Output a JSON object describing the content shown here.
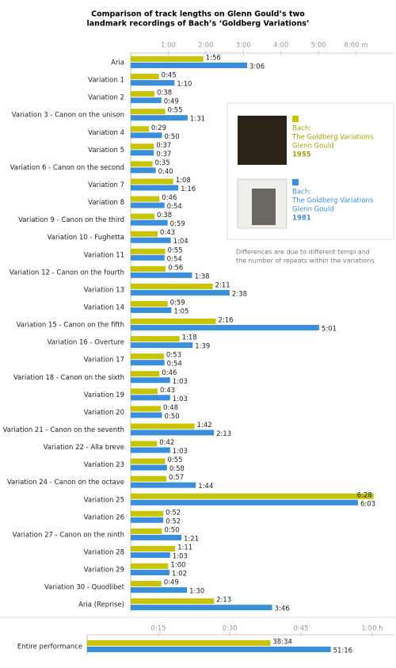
{
  "chart_data": [
    {
      "type": "bar",
      "orientation": "horizontal",
      "title": [
        "Comparison of track lengths on Glenn Gould’s two",
        "landmark recordings of Bach’s ‘Goldberg Variations’"
      ],
      "note": [
        "Differences are due to different tempi and",
        "the number of repeats within the variations."
      ],
      "categories": [
        "Aria",
        "Variation 1",
        "Variation 2",
        "Variation 3 - Canon on the unison",
        "Variation 4",
        "Variation 5",
        "Variation 6 - Canon on the second",
        "Variation 7",
        "Variation 8",
        "Variation 9 - Canon on the third",
        "Variation 10 - Fughetta",
        "Variation 11",
        "Variation 12 - Canon on the fourth",
        "Variation 13",
        "Variation 14",
        "Variation 15 - Canon on the fifth",
        "Variation 16 - Overture",
        "Variation 17",
        "Variation 18 - Canon on the sixth",
        "Variation 19",
        "Variation 20",
        "Variation 21 - Canon on the seventh",
        "Variation 22 - Alla breve",
        "Variation 23",
        "Variation 24 - Canon on the octave",
        "Variation 25",
        "Variation 26",
        "Variation 27 - Canon on the ninth",
        "Variation 28",
        "Variation 29",
        "Variation 30 - Quodlibet",
        "Aria (Reprise)"
      ],
      "series": [
        {
          "name": "1955",
          "album": [
            "Bach:",
            "The Goldberg Variations",
            "Glenn Gould"
          ],
          "color": "#c8c400",
          "text_color": "#a8a300",
          "values": [
            1.9333,
            0.75,
            0.6333,
            0.9167,
            0.4833,
            0.6167,
            0.5833,
            1.1333,
            0.7667,
            0.6333,
            0.7167,
            0.9167,
            0.9333,
            2.1833,
            0.9833,
            2.2667,
            1.3,
            0.8833,
            0.7667,
            0.7167,
            0.8,
            1.7,
            0.7,
            0.9167,
            0.95,
            6.4667,
            0.8667,
            0.8333,
            1.1833,
            1.0,
            0.8167,
            2.2167
          ],
          "value_labels": [
            "1:56",
            "0:45",
            "0:38",
            "0:55",
            "0:29",
            "0:37",
            "0:35",
            "1:08",
            "0:46",
            "0:38",
            "0:43",
            "0:55",
            "0:56",
            "2:11",
            "0:59",
            "2:16",
            "1:18",
            "0:53",
            "0:46",
            "0:43",
            "0:48",
            "1:42",
            "0:42",
            "0:55",
            "0:57",
            "6:28",
            "0:52",
            "0:50",
            "1:11",
            "1:00",
            "0:49",
            "2:13"
          ]
        },
        {
          "name": "1981",
          "album": [
            "Bach:",
            "The Goldberg Variations",
            "Glenn Gould"
          ],
          "color": "#3a8fdc",
          "text_color": "#3a8fdc",
          "values": [
            3.1,
            1.1667,
            0.8167,
            1.5167,
            0.8333,
            0.6167,
            0.6667,
            1.2667,
            0.9,
            0.9833,
            1.0667,
            0.9,
            1.6333,
            2.6333,
            1.0833,
            5.0167,
            1.65,
            0.9,
            1.05,
            1.05,
            0.8333,
            2.2167,
            1.05,
            0.9667,
            1.7333,
            6.05,
            0.8667,
            1.35,
            1.05,
            1.0333,
            1.5,
            3.7667
          ],
          "value_labels": [
            "3:06",
            "1:10",
            "0:49",
            "1:31",
            "0:50",
            "0:37",
            "0:40",
            "1:16",
            "0:54",
            "0:59",
            "1:04",
            "0:54",
            "1:38",
            "2:38",
            "1:05",
            "5:01",
            "1:39",
            "0:54",
            "1:03",
            "1:03",
            "0:50",
            "2:13",
            "1:03",
            "0:58",
            "1:44",
            "6:03",
            "0:52",
            "1:21",
            "1:03",
            "1:02",
            "1:30",
            "3:46"
          ]
        }
      ],
      "xlim": [
        0,
        7
      ],
      "xticks": [
        {
          "value": 1,
          "label": "1:00"
        },
        {
          "value": 2,
          "label": "2:00"
        },
        {
          "value": 3,
          "label": "3:00"
        },
        {
          "value": 4,
          "label": "4:00"
        },
        {
          "value": 5,
          "label": "5:00"
        },
        {
          "value": 6,
          "label": "6:00 m"
        }
      ]
    },
    {
      "type": "bar",
      "orientation": "horizontal",
      "categories": [
        "Entire performance"
      ],
      "series": [
        {
          "color": "#c8c400",
          "values": [
            0.64278
          ],
          "value_labels": [
            "38:34"
          ]
        },
        {
          "color": "#3a8fdc",
          "values": [
            0.85444
          ],
          "value_labels": [
            "51:16"
          ]
        }
      ],
      "xlim": [
        0,
        1.075
      ],
      "xticks": [
        {
          "value": 0.25,
          "label": "0:15"
        },
        {
          "value": 0.5,
          "label": "0:30"
        },
        {
          "value": 0.75,
          "label": "0:45"
        },
        {
          "value": 1,
          "label": "1:00 h"
        }
      ]
    }
  ]
}
